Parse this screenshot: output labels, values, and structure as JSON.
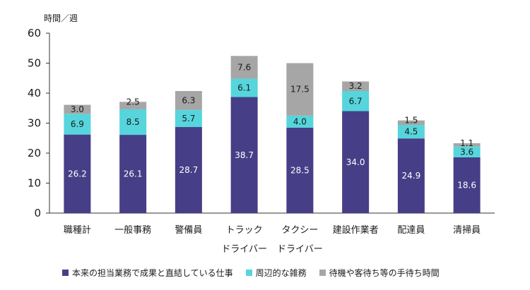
{
  "chart_data": {
    "type": "bar",
    "stacked": true,
    "unit_label": "時間／週",
    "categories": [
      "職種計",
      "一般事務",
      "警備員",
      "トラック",
      "タクシー",
      "建設作業者",
      "配達員",
      "清掃員"
    ],
    "category_sublabels": [
      "",
      "",
      "",
      "ドライバー",
      "ドライバー",
      "",
      "",
      ""
    ],
    "ylim": [
      0,
      60
    ],
    "yticks": [
      0,
      10,
      20,
      30,
      40,
      50,
      60
    ],
    "series": [
      {
        "name": "本来の担当業務で成果と直結している仕事",
        "color": "#463f87",
        "label_color": "#ffffff",
        "values": [
          26.2,
          26.1,
          28.7,
          38.7,
          28.5,
          34.0,
          24.9,
          18.6
        ]
      },
      {
        "name": "周辺的な雑務",
        "color": "#56d5dc",
        "label_color": "#1a1a1a",
        "values": [
          6.9,
          8.5,
          5.7,
          6.1,
          4.0,
          6.7,
          4.5,
          3.6
        ]
      },
      {
        "name": "待機や客待ち等の手待ち時間",
        "color": "#a6a6a6",
        "label_color": "#1a1a1a",
        "values": [
          3.0,
          2.5,
          6.3,
          7.6,
          17.5,
          3.2,
          1.5,
          1.1
        ]
      }
    ],
    "legend_position": "bottom",
    "grid": false
  }
}
